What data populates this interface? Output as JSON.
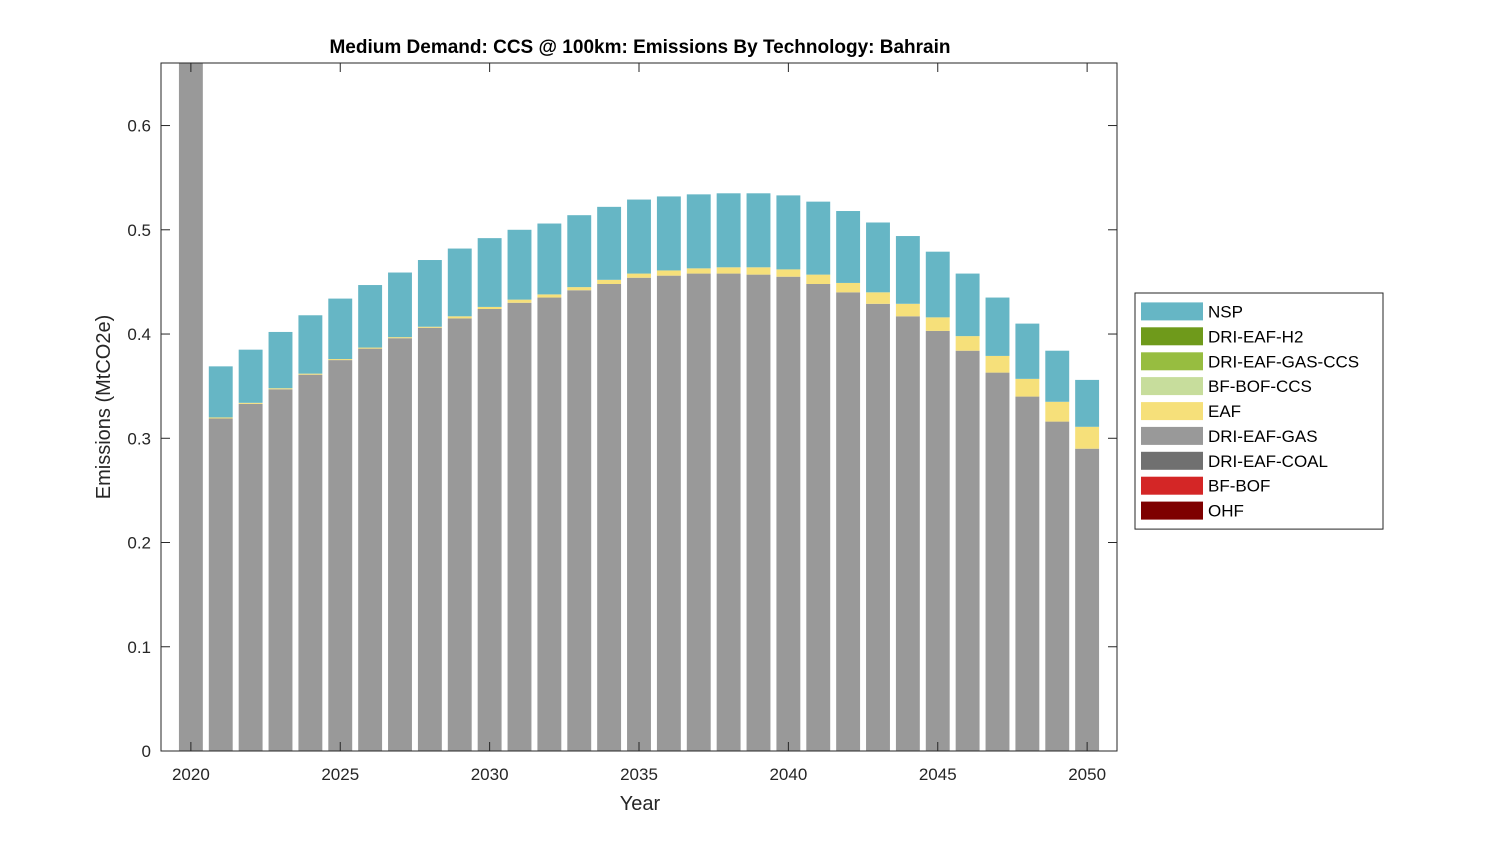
{
  "chart_data": {
    "type": "bar",
    "stacked": true,
    "title": "Medium Demand: CCS @ 100km: Emissions By Technology: Bahrain",
    "xlabel": "Year",
    "ylabel": "Emissions (MtCO2e)",
    "xlim": [
      2019,
      2051
    ],
    "ylim": [
      0,
      0.66
    ],
    "x_ticks": [
      2020,
      2025,
      2030,
      2035,
      2040,
      2045,
      2050
    ],
    "y_ticks": [
      0,
      0.1,
      0.2,
      0.3,
      0.4,
      0.5,
      0.6
    ],
    "grid": false,
    "legend_position": "right",
    "x": [
      2020,
      2021,
      2022,
      2023,
      2024,
      2025,
      2026,
      2027,
      2028,
      2029,
      2030,
      2031,
      2032,
      2033,
      2034,
      2035,
      2036,
      2037,
      2038,
      2039,
      2040,
      2041,
      2042,
      2043,
      2044,
      2045,
      2046,
      2047,
      2048,
      2049,
      2050
    ],
    "series": [
      {
        "name": "OHF",
        "color": "#7e0000",
        "values": [
          0,
          0,
          0,
          0,
          0,
          0,
          0,
          0,
          0,
          0,
          0,
          0,
          0,
          0,
          0,
          0,
          0,
          0,
          0,
          0,
          0,
          0,
          0,
          0,
          0,
          0,
          0,
          0,
          0,
          0,
          0
        ]
      },
      {
        "name": "BF-BOF",
        "color": "#d42626",
        "values": [
          0,
          0,
          0,
          0,
          0,
          0,
          0,
          0,
          0,
          0,
          0,
          0,
          0,
          0,
          0,
          0,
          0,
          0,
          0,
          0,
          0,
          0,
          0,
          0,
          0,
          0,
          0,
          0,
          0,
          0,
          0
        ]
      },
      {
        "name": "DRI-EAF-COAL",
        "color": "#707070",
        "values": [
          0,
          0,
          0,
          0,
          0,
          0,
          0,
          0,
          0,
          0,
          0,
          0,
          0,
          0,
          0,
          0,
          0,
          0,
          0,
          0,
          0,
          0,
          0,
          0,
          0,
          0,
          0,
          0,
          0,
          0,
          0
        ]
      },
      {
        "name": "DRI-EAF-GAS",
        "color": "#999999",
        "values": [
          0.7,
          0.319,
          0.333,
          0.347,
          0.361,
          0.375,
          0.386,
          0.396,
          0.406,
          0.415,
          0.424,
          0.43,
          0.435,
          0.442,
          0.448,
          0.454,
          0.456,
          0.458,
          0.458,
          0.457,
          0.455,
          0.448,
          0.44,
          0.429,
          0.417,
          0.403,
          0.384,
          0.363,
          0.34,
          0.316,
          0.29
        ]
      },
      {
        "name": "EAF",
        "color": "#f6e07a",
        "values": [
          0,
          0.001,
          0.001,
          0.001,
          0.001,
          0.001,
          0.001,
          0.001,
          0.001,
          0.002,
          0.002,
          0.003,
          0.003,
          0.003,
          0.004,
          0.004,
          0.005,
          0.005,
          0.006,
          0.007,
          0.007,
          0.009,
          0.009,
          0.011,
          0.012,
          0.013,
          0.014,
          0.016,
          0.017,
          0.019,
          0.021
        ]
      },
      {
        "name": "BF-BOF-CCS",
        "color": "#c7dd9c",
        "values": [
          0,
          0,
          0,
          0,
          0,
          0,
          0,
          0,
          0,
          0,
          0,
          0,
          0,
          0,
          0,
          0,
          0,
          0,
          0,
          0,
          0,
          0,
          0,
          0,
          0,
          0,
          0,
          0,
          0,
          0,
          0
        ]
      },
      {
        "name": "DRI-EAF-GAS-CCS",
        "color": "#97bd40",
        "values": [
          0,
          0,
          0,
          0,
          0,
          0,
          0,
          0,
          0,
          0,
          0,
          0,
          0,
          0,
          0,
          0,
          0,
          0,
          0,
          0,
          0,
          0,
          0,
          0,
          0,
          0,
          0,
          0,
          0,
          0,
          0
        ]
      },
      {
        "name": "DRI-EAF-H2",
        "color": "#6f9a1b",
        "values": [
          0,
          0,
          0,
          0,
          0,
          0,
          0,
          0,
          0,
          0,
          0,
          0,
          0,
          0,
          0,
          0,
          0,
          0,
          0,
          0,
          0,
          0,
          0,
          0,
          0,
          0,
          0,
          0,
          0,
          0,
          0
        ]
      },
      {
        "name": "NSP",
        "color": "#66b6c5",
        "values": [
          0,
          0.049,
          0.051,
          0.054,
          0.056,
          0.058,
          0.06,
          0.062,
          0.064,
          0.065,
          0.066,
          0.067,
          0.068,
          0.069,
          0.07,
          0.071,
          0.071,
          0.071,
          0.071,
          0.071,
          0.071,
          0.07,
          0.069,
          0.067,
          0.065,
          0.063,
          0.06,
          0.056,
          0.053,
          0.049,
          0.045
        ]
      }
    ],
    "legend_order": [
      "NSP",
      "DRI-EAF-H2",
      "DRI-EAF-GAS-CCS",
      "BF-BOF-CCS",
      "EAF",
      "DRI-EAF-GAS",
      "DRI-EAF-COAL",
      "BF-BOF",
      "OHF"
    ]
  }
}
